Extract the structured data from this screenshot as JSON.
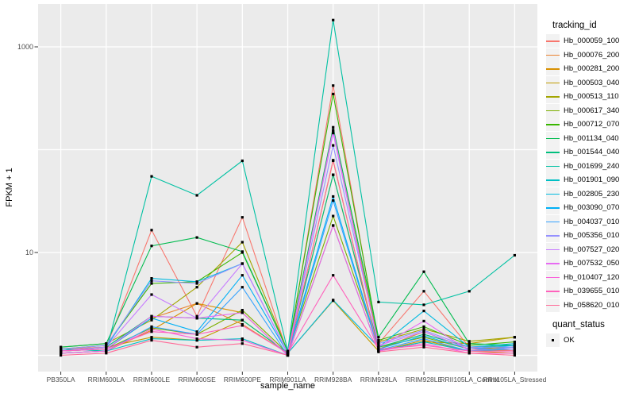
{
  "axes": {
    "x_title": "sample_name",
    "y_title": "FPKM + 1"
  },
  "legend": {
    "title": "tracking_id"
  },
  "legend2": {
    "title": "quant_status",
    "items": [
      {
        "label": "OK",
        "marker": "black-square"
      }
    ]
  },
  "colors": {
    "panel_bg": "#EBEBEB",
    "grid": "#FFFFFF",
    "key_bg": "#F2F2F2",
    "tick_text": "#4D4D4D",
    "tick_mark": "#333333",
    "point": "#000000"
  },
  "chart_data": {
    "type": "line",
    "title": "",
    "xlabel": "sample_name",
    "ylabel": "FPKM + 1",
    "y_scale": "log10",
    "ylim": [
      0.7,
      2400
    ],
    "grid": true,
    "legend_position": "right",
    "point_marker": {
      "shape": "square",
      "color": "#000000",
      "size": 3.2
    },
    "y_ticks": [
      {
        "value": 10,
        "label": "10"
      },
      {
        "value": 1000,
        "label": "1000"
      }
    ],
    "y_gridlines": [
      1,
      10,
      100,
      1000
    ],
    "categories": [
      "PB350LA",
      "RRIM600LA",
      "RRIM600LE",
      "RRIM600SE",
      "RRIM600PE",
      "RRIM901LA",
      "RRIM928BA",
      "RRIM928LA",
      "RRIM928LE",
      "RRII105LA_Control",
      "RRII105LA_Stressed"
    ],
    "series": [
      {
        "name": "Hb_000059_100",
        "color": "#F8766D",
        "values": [
          1.15,
          1.2,
          16.5,
          2.4,
          22,
          1.05,
          420,
          1.3,
          4.2,
          1.2,
          1.1
        ]
      },
      {
        "name": "Hb_000076_200",
        "color": "#EA8331",
        "values": [
          1.1,
          1.15,
          2.3,
          3.2,
          2.0,
          1.05,
          57,
          1.15,
          1.7,
          1.15,
          1.1
        ]
      },
      {
        "name": "Hb_000281_200",
        "color": "#D89000",
        "values": [
          1.05,
          1.1,
          1.75,
          3.2,
          2.6,
          1.0,
          78,
          1.1,
          1.4,
          1.1,
          1.05
        ]
      },
      {
        "name": "Hb_000503_040",
        "color": "#C09B00",
        "values": [
          1.1,
          1.2,
          1.5,
          1.4,
          2.2,
          1.05,
          3.4,
          1.1,
          1.35,
          1.3,
          1.5
        ]
      },
      {
        "name": "Hb_000513_110",
        "color": "#A3A500",
        "values": [
          1.2,
          1.3,
          2.2,
          4.6,
          12.6,
          1.1,
          150,
          1.35,
          1.8,
          1.37,
          1.5
        ]
      },
      {
        "name": "Hb_000617_340",
        "color": "#7CAE00",
        "values": [
          1.1,
          1.15,
          1.85,
          1.6,
          2.75,
          1.05,
          22.6,
          1.2,
          1.5,
          1.15,
          1.2
        ]
      },
      {
        "name": "Hb_000712_070",
        "color": "#39B600",
        "values": [
          1.15,
          1.25,
          5.0,
          5.2,
          10,
          1.1,
          348,
          1.4,
          1.9,
          1.25,
          1.35
        ]
      },
      {
        "name": "Hb_001134_040",
        "color": "#00BB4E",
        "values": [
          1.2,
          1.3,
          11.6,
          14,
          10.2,
          1.1,
          165,
          1.5,
          6.5,
          1.3,
          1.25
        ]
      },
      {
        "name": "Hb_001544_040",
        "color": "#00BF7D",
        "values": [
          1.1,
          1.2,
          2.4,
          2.3,
          2.2,
          1.05,
          57,
          1.2,
          1.6,
          1.2,
          1.25
        ]
      },
      {
        "name": "Hb_001699_240",
        "color": "#00C1A3",
        "values": [
          1.15,
          1.1,
          55,
          36,
          78,
          1.1,
          1820,
          3.3,
          3.1,
          4.2,
          9.4
        ]
      },
      {
        "name": "Hb_001901_090",
        "color": "#00BFC4",
        "values": [
          1.05,
          1.1,
          1.45,
          1.4,
          1.45,
          1.0,
          18.3,
          1.1,
          1.35,
          1.1,
          1.15
        ]
      },
      {
        "name": "Hb_002805_230",
        "color": "#00BAE0",
        "values": [
          1.1,
          1.2,
          5.6,
          5.2,
          7.8,
          1.05,
          3.45,
          1.2,
          2.7,
          1.2,
          1.3
        ]
      },
      {
        "name": "Hb_003090_070",
        "color": "#00B0F6",
        "values": [
          1.1,
          1.15,
          2.3,
          1.7,
          6.0,
          1.05,
          35,
          1.15,
          1.55,
          1.15,
          1.25
        ]
      },
      {
        "name": "Hb_004037_010",
        "color": "#35A2FF",
        "values": [
          1.05,
          1.1,
          1.9,
          1.6,
          4.6,
          1.0,
          32,
          1.12,
          1.45,
          1.1,
          1.2
        ]
      },
      {
        "name": "Hb_005356_010",
        "color": "#9590FF",
        "values": [
          1.15,
          1.25,
          5.3,
          5.0,
          7.8,
          1.05,
          110,
          1.3,
          1.75,
          1.2,
          1.2
        ]
      },
      {
        "name": "Hb_007527_020",
        "color": "#C77CFF",
        "values": [
          1.1,
          1.2,
          3.9,
          2.3,
          7.8,
          1.05,
          145,
          1.25,
          1.7,
          1.15,
          1.15
        ]
      },
      {
        "name": "Hb_007532_050",
        "color": "#E76BF3",
        "values": [
          1.1,
          1.15,
          2.4,
          2.3,
          2.6,
          1.0,
          155,
          1.2,
          2.15,
          1.1,
          1.1
        ]
      },
      {
        "name": "Hb_010407_120",
        "color": "#FA62DB",
        "values": [
          1.05,
          1.1,
          1.8,
          1.45,
          1.4,
          1.0,
          18.3,
          1.1,
          1.3,
          1.05,
          1.05
        ]
      },
      {
        "name": "Hb_039655_010",
        "color": "#FF62BC",
        "values": [
          1.1,
          1.15,
          1.7,
          1.6,
          1.95,
          1.05,
          6.0,
          1.15,
          1.25,
          1.1,
          1.1
        ]
      },
      {
        "name": "Hb_058620_010",
        "color": "#FF6A98",
        "values": [
          1.0,
          1.05,
          1.4,
          1.2,
          1.3,
          1.0,
          79,
          1.08,
          1.2,
          1.05,
          1.0
        ]
      }
    ]
  }
}
